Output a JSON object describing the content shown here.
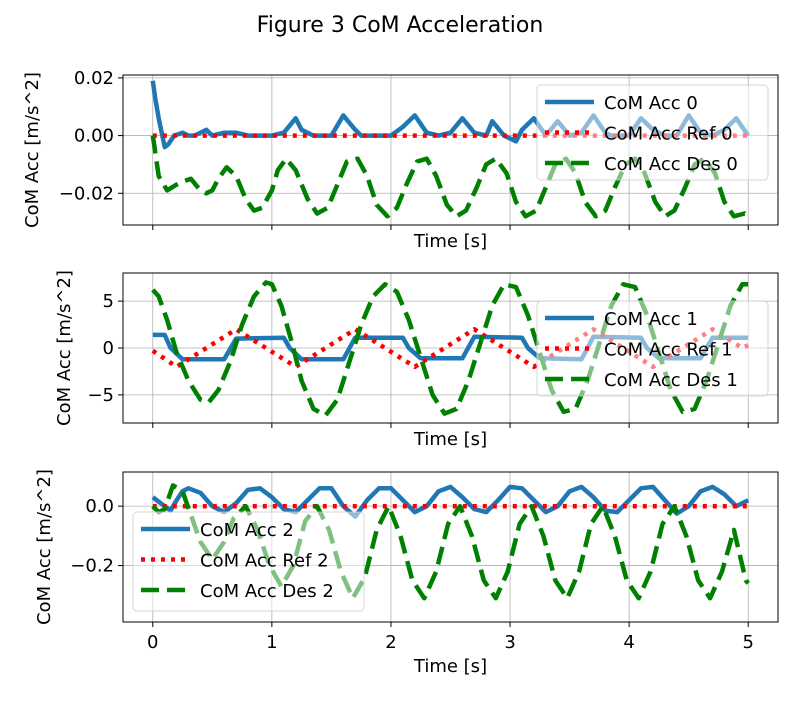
{
  "figure": {
    "title": "Figure 3 CoM Acceleration"
  },
  "colors": {
    "acc": "#1f77b4",
    "ref": "#ff0000",
    "des": "#008000",
    "grid": "#b0b0b0"
  },
  "chart_data": [
    {
      "type": "line",
      "xlabel": "Time [s]",
      "ylabel": "CoM Acc [m/s^2]",
      "xlim": [
        -0.25,
        5.25
      ],
      "ylim": [
        -0.031,
        0.021
      ],
      "xticks": [
        0,
        1,
        2,
        3,
        4,
        5
      ],
      "xtick_labels_visible": false,
      "yticks": [
        -0.02,
        0.0,
        0.02
      ],
      "ytick_labels": [
        "−0.02",
        "0.00",
        "0.02"
      ],
      "grid": true,
      "legend_position": "upper-right",
      "legend": [
        "CoM Acc 0",
        "CoM Acc Ref 0",
        "CoM Acc Des 0"
      ],
      "series": [
        {
          "name": "CoM Acc 0",
          "style": "solid",
          "color": "#1f77b4",
          "x": [
            0,
            0.02,
            0.05,
            0.08,
            0.1,
            0.13,
            0.18,
            0.25,
            0.3,
            0.35,
            0.45,
            0.5,
            0.6,
            0.7,
            0.8,
            0.9,
            1.0,
            1.1,
            1.2,
            1.25,
            1.35,
            1.5,
            1.6,
            1.7,
            1.75,
            1.85,
            2.0,
            2.1,
            2.2,
            2.3,
            2.4,
            2.5,
            2.6,
            2.7,
            2.8,
            2.85,
            2.95,
            3.05,
            3.1,
            3.2,
            3.3,
            3.4,
            3.5,
            3.6,
            3.7,
            3.8,
            3.85,
            4.0,
            4.1,
            4.2,
            4.3,
            4.4,
            4.5,
            4.6,
            4.7,
            4.8,
            4.9,
            5.0
          ],
          "y": [
            0.019,
            0.013,
            0.006,
            0.0,
            -0.004,
            -0.003,
            0.0,
            0.001,
            0.0,
            0.0,
            0.002,
            0.0,
            0.001,
            0.001,
            0.0,
            0.0,
            0.0,
            0.001,
            0.006,
            0.002,
            0.0,
            0.0,
            0.007,
            0.002,
            0.0,
            0.0,
            0.0,
            0.003,
            0.007,
            0.001,
            0.0,
            0.001,
            0.006,
            0.001,
            0.0,
            0.005,
            0.0,
            -0.002,
            0.002,
            0.006,
            0.0,
            0.005,
            0.0,
            0.001,
            0.007,
            0.001,
            0.0,
            0.0,
            0.006,
            0.002,
            0.0,
            0.0,
            0.007,
            0.001,
            0.0,
            0.002,
            0.006,
            0.0
          ]
        },
        {
          "name": "CoM Acc Ref 0",
          "style": "dotted",
          "color": "#ff0000",
          "x": [
            0,
            5
          ],
          "y": [
            0.0,
            0.0
          ]
        },
        {
          "name": "CoM Acc Des 0",
          "style": "dashed",
          "color": "#008000",
          "x": [
            0,
            0.05,
            0.12,
            0.2,
            0.25,
            0.32,
            0.4,
            0.45,
            0.5,
            0.55,
            0.62,
            0.7,
            0.78,
            0.85,
            0.92,
            1.0,
            1.05,
            1.12,
            1.2,
            1.3,
            1.38,
            1.47,
            1.55,
            1.63,
            1.72,
            1.8,
            1.88,
            1.97,
            2.05,
            2.13,
            2.22,
            2.3,
            2.38,
            2.47,
            2.55,
            2.63,
            2.72,
            2.8,
            2.88,
            2.97,
            3.05,
            3.13,
            3.22,
            3.3,
            3.38,
            3.47,
            3.55,
            3.63,
            3.72,
            3.8,
            3.88,
            3.97,
            4.05,
            4.13,
            4.22,
            4.3,
            4.38,
            4.47,
            4.55,
            4.63,
            4.72,
            4.8,
            4.88,
            4.97,
            5.0
          ],
          "y": [
            0.0,
            -0.014,
            -0.019,
            -0.017,
            -0.016,
            -0.015,
            -0.019,
            -0.02,
            -0.019,
            -0.015,
            -0.011,
            -0.014,
            -0.022,
            -0.026,
            -0.025,
            -0.019,
            -0.012,
            -0.008,
            -0.012,
            -0.022,
            -0.027,
            -0.025,
            -0.017,
            -0.009,
            -0.008,
            -0.014,
            -0.024,
            -0.028,
            -0.025,
            -0.017,
            -0.009,
            -0.008,
            -0.014,
            -0.024,
            -0.028,
            -0.026,
            -0.018,
            -0.01,
            -0.008,
            -0.013,
            -0.023,
            -0.028,
            -0.026,
            -0.018,
            -0.01,
            -0.008,
            -0.013,
            -0.023,
            -0.028,
            -0.026,
            -0.018,
            -0.01,
            -0.008,
            -0.013,
            -0.023,
            -0.028,
            -0.026,
            -0.018,
            -0.01,
            -0.008,
            -0.013,
            -0.023,
            -0.028,
            -0.027,
            -0.028
          ]
        }
      ]
    },
    {
      "type": "line",
      "xlabel": "Time [s]",
      "ylabel": "CoM Acc [m/s^2]",
      "xlim": [
        -0.25,
        5.25
      ],
      "ylim": [
        -8.0,
        8.0
      ],
      "xticks": [
        0,
        1,
        2,
        3,
        4,
        5
      ],
      "xtick_labels_visible": false,
      "yticks": [
        -5,
        0,
        5
      ],
      "ytick_labels": [
        "−5",
        "0",
        "5"
      ],
      "grid": true,
      "legend_position": "center-right",
      "legend": [
        "CoM Acc 1",
        "CoM Acc Ref 1",
        "CoM Acc Des 1"
      ],
      "series": [
        {
          "name": "CoM Acc 1",
          "style": "solid",
          "color": "#1f77b4",
          "x": [
            0,
            0.1,
            0.15,
            0.25,
            0.6,
            0.7,
            1.1,
            1.15,
            1.25,
            1.6,
            1.7,
            2.1,
            2.15,
            2.25,
            2.6,
            2.7,
            3.1,
            3.15,
            3.25,
            3.6,
            3.7,
            4.1,
            4.15,
            4.25,
            4.6,
            4.7,
            5.0
          ],
          "y": [
            1.4,
            1.4,
            0.0,
            -1.2,
            -1.2,
            1.0,
            1.1,
            0.0,
            -1.2,
            -1.2,
            1.1,
            1.1,
            0.0,
            -1.1,
            -1.1,
            1.2,
            1.1,
            0.0,
            -1.1,
            -1.2,
            1.2,
            1.1,
            0.0,
            -1.1,
            -1.1,
            1.1,
            1.1
          ]
        },
        {
          "name": "CoM Acc Ref 1",
          "style": "dotted",
          "color": "#ff0000",
          "x": [
            0,
            0.2,
            0.45,
            0.7,
            0.95,
            1.2,
            1.45,
            1.7,
            1.95,
            2.2,
            2.45,
            2.7,
            2.95,
            3.2,
            3.45,
            3.7,
            3.95,
            4.2,
            4.45,
            4.7,
            4.95,
            5.0
          ],
          "y": [
            -0.3,
            -2.0,
            0.0,
            2.0,
            0.0,
            -2.0,
            0.0,
            2.0,
            0.0,
            -2.0,
            0.0,
            2.0,
            0.0,
            -2.0,
            0.0,
            2.0,
            0.0,
            -2.0,
            0.0,
            2.0,
            0.0,
            0.3
          ]
        },
        {
          "name": "CoM Acc Des 1",
          "style": "dashed",
          "color": "#008000",
          "x": [
            0,
            0.05,
            0.12,
            0.2,
            0.3,
            0.4,
            0.47,
            0.55,
            0.65,
            0.75,
            0.85,
            0.95,
            1.0,
            1.08,
            1.17,
            1.25,
            1.35,
            1.45,
            1.55,
            1.65,
            1.75,
            1.85,
            1.95,
            2.05,
            2.15,
            2.25,
            2.35,
            2.45,
            2.55,
            2.65,
            2.75,
            2.85,
            2.95,
            3.05,
            3.15,
            3.25,
            3.35,
            3.45,
            3.55,
            3.65,
            3.75,
            3.85,
            3.95,
            4.05,
            4.15,
            4.25,
            4.35,
            4.45,
            4.55,
            4.65,
            4.75,
            4.85,
            4.95,
            5.0
          ],
          "y": [
            6.2,
            5.5,
            3.0,
            -0.5,
            -3.5,
            -5.5,
            -5.8,
            -4.5,
            -1.5,
            2.5,
            5.5,
            7.0,
            6.8,
            4.5,
            0.5,
            -3.5,
            -6.5,
            -7.2,
            -5.5,
            -1.5,
            2.5,
            5.5,
            6.8,
            6.0,
            3.0,
            -1.0,
            -5.0,
            -7.0,
            -6.5,
            -3.5,
            0.5,
            4.5,
            6.8,
            6.5,
            3.5,
            -0.5,
            -4.5,
            -6.8,
            -6.5,
            -3.5,
            0.5,
            4.5,
            6.8,
            6.5,
            3.5,
            -0.5,
            -4.5,
            -6.8,
            -6.5,
            -3.5,
            0.5,
            4.5,
            6.8,
            6.8
          ]
        }
      ]
    },
    {
      "type": "line",
      "xlabel": "Time [s]",
      "ylabel": "CoM Acc [m/s^2]",
      "xlim": [
        -0.25,
        5.25
      ],
      "ylim": [
        -0.39,
        0.115
      ],
      "xticks": [
        0,
        1,
        2,
        3,
        4,
        5
      ],
      "xtick_labels": [
        "0",
        "1",
        "2",
        "3",
        "4",
        "5"
      ],
      "xtick_labels_visible": true,
      "yticks": [
        -0.2,
        0.0
      ],
      "ytick_labels": [
        "−0.2",
        "0.0"
      ],
      "grid": true,
      "legend_position": "lower-left",
      "legend": [
        "CoM Acc 2",
        "CoM Acc Ref 2",
        "CoM Acc Des 2"
      ],
      "series": [
        {
          "name": "CoM Acc 2",
          "style": "solid",
          "color": "#1f77b4",
          "x": [
            0,
            0.05,
            0.1,
            0.15,
            0.2,
            0.25,
            0.3,
            0.4,
            0.5,
            0.6,
            0.7,
            0.8,
            0.9,
            1.0,
            1.1,
            1.2,
            1.3,
            1.4,
            1.5,
            1.6,
            1.7,
            1.8,
            1.9,
            2.0,
            2.1,
            2.2,
            2.3,
            2.4,
            2.5,
            2.6,
            2.7,
            2.8,
            2.9,
            3.0,
            3.1,
            3.2,
            3.3,
            3.4,
            3.5,
            3.6,
            3.7,
            3.8,
            3.9,
            4.0,
            4.1,
            4.2,
            4.3,
            4.4,
            4.5,
            4.6,
            4.7,
            4.8,
            4.9,
            5.0
          ],
          "y": [
            0.03,
            0.015,
            0.0,
            -0.015,
            0.02,
            0.05,
            0.06,
            0.045,
            0.0,
            -0.02,
            0.01,
            0.055,
            0.06,
            0.03,
            -0.01,
            -0.02,
            0.02,
            0.06,
            0.06,
            0.0,
            -0.035,
            0.02,
            0.06,
            0.06,
            0.02,
            -0.02,
            0.0,
            0.05,
            0.065,
            0.03,
            -0.01,
            -0.02,
            0.02,
            0.065,
            0.06,
            0.02,
            -0.02,
            0.0,
            0.05,
            0.065,
            0.03,
            -0.015,
            -0.02,
            0.02,
            0.06,
            0.065,
            0.02,
            -0.025,
            0.0,
            0.05,
            0.065,
            0.04,
            0.0,
            0.02
          ]
        },
        {
          "name": "CoM Acc Ref 2",
          "style": "dotted",
          "color": "#ff0000",
          "x": [
            0,
            5
          ],
          "y": [
            0.0,
            0.0
          ]
        },
        {
          "name": "CoM Acc Des 2",
          "style": "dashed",
          "color": "#008000",
          "x": [
            0,
            0.05,
            0.1,
            0.17,
            0.25,
            0.32,
            0.4,
            0.5,
            0.6,
            0.68,
            0.78,
            0.88,
            0.98,
            1.08,
            1.18,
            1.28,
            1.38,
            1.48,
            1.58,
            1.68,
            1.78,
            1.88,
            1.98,
            2.08,
            2.18,
            2.28,
            2.38,
            2.48,
            2.58,
            2.68,
            2.78,
            2.88,
            2.98,
            3.08,
            3.18,
            3.28,
            3.38,
            3.48,
            3.58,
            3.68,
            3.78,
            3.88,
            3.98,
            4.08,
            4.18,
            4.28,
            4.38,
            4.48,
            4.58,
            4.68,
            4.78,
            4.88,
            4.98,
            5.0
          ],
          "y": [
            0.0,
            -0.02,
            -0.01,
            0.07,
            0.05,
            -0.03,
            -0.12,
            -0.18,
            -0.12,
            -0.04,
            0.0,
            -0.08,
            -0.2,
            -0.27,
            -0.2,
            -0.05,
            0.0,
            -0.08,
            -0.22,
            -0.31,
            -0.24,
            -0.08,
            0.0,
            -0.1,
            -0.25,
            -0.31,
            -0.22,
            -0.06,
            0.0,
            -0.1,
            -0.25,
            -0.31,
            -0.22,
            -0.06,
            0.0,
            -0.1,
            -0.25,
            -0.31,
            -0.22,
            -0.06,
            0.0,
            -0.1,
            -0.25,
            -0.31,
            -0.22,
            -0.06,
            0.0,
            -0.1,
            -0.25,
            -0.31,
            -0.22,
            -0.08,
            -0.25,
            -0.26
          ]
        }
      ]
    }
  ]
}
